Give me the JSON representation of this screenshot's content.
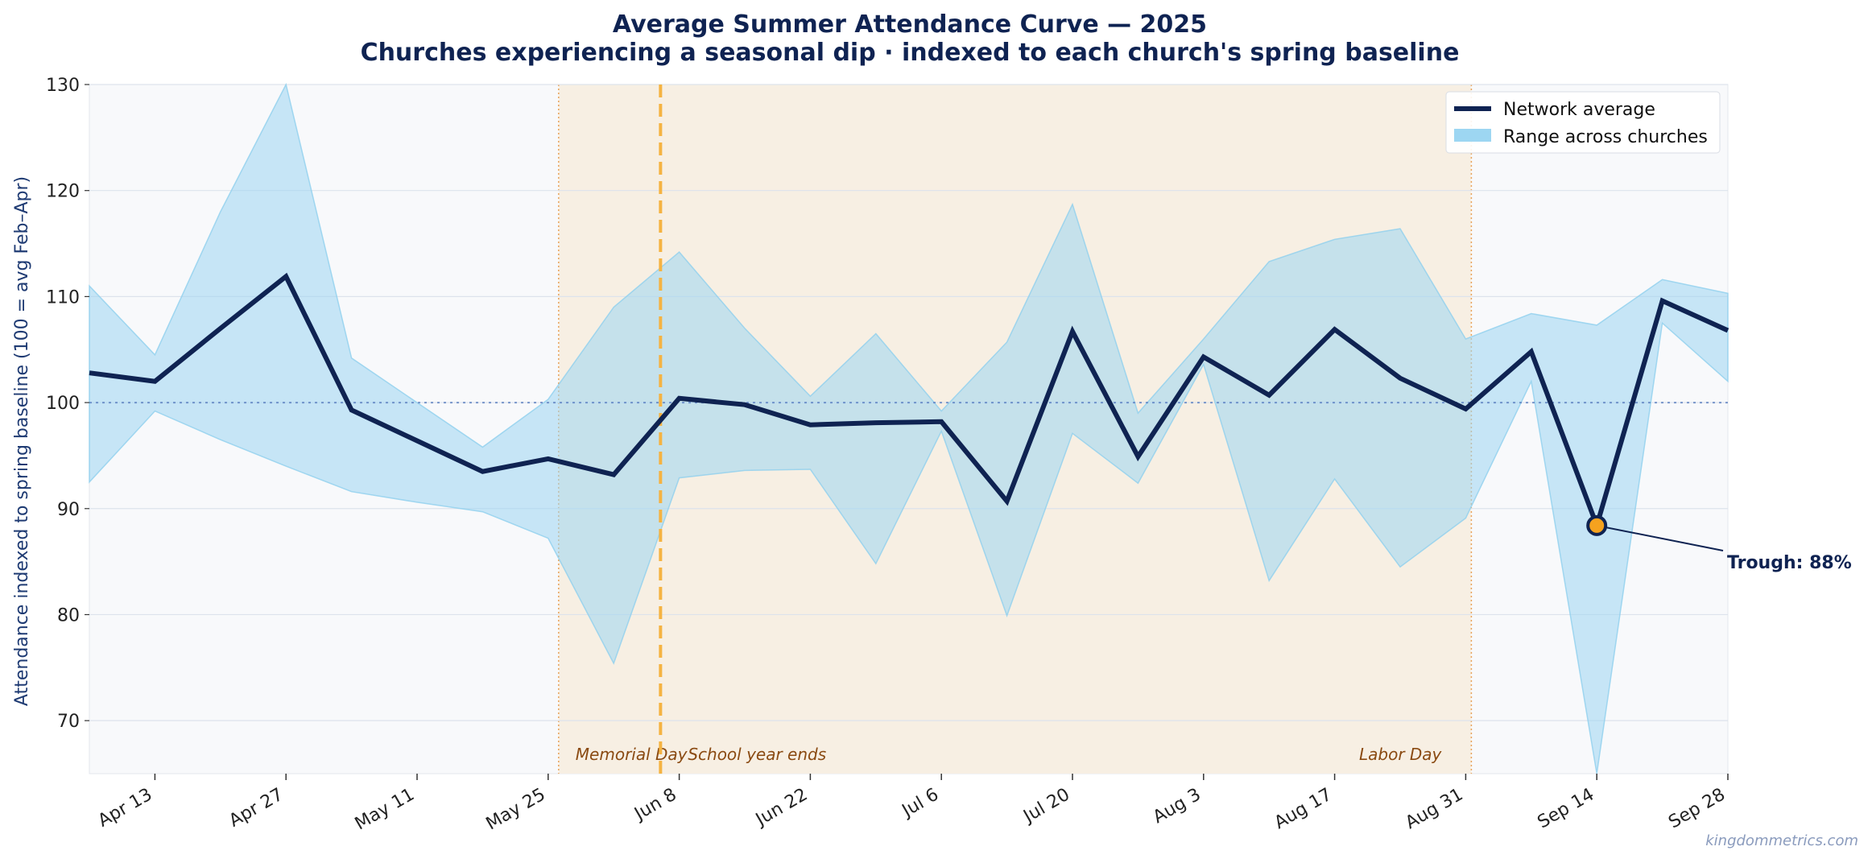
{
  "chart_data": {
    "type": "line",
    "title": "Average Summer Attendance Curve — 2025",
    "subtitle": "Churches experiencing a seasonal dip · indexed to each church's spring baseline",
    "ylabel": "Attendance indexed to spring baseline  (100 = avg Feb–Apr)",
    "xlabel": "",
    "x_tick_labels": [
      "Apr 13",
      "Apr 27",
      "May 11",
      "May 25",
      "Jun 8",
      "Jun 22",
      "Jul 6",
      "Jul 20",
      "Aug 3",
      "Aug 17",
      "Aug 31",
      "Sep 14",
      "Sep 28"
    ],
    "y_ticks": [
      70,
      80,
      90,
      100,
      110,
      120,
      130
    ],
    "ylim": [
      65,
      130
    ],
    "xlim": [
      "Apr 6",
      "Sep 28"
    ],
    "grid": "horizontal",
    "legend_position": "top-right",
    "x": [
      "Apr 6",
      "Apr 13",
      "Apr 20",
      "Apr 27",
      "May 4",
      "May 11",
      "May 18",
      "May 25",
      "Jun 1",
      "Jun 8",
      "Jun 15",
      "Jun 22",
      "Jun 29",
      "Jul 6",
      "Jul 13",
      "Jul 20",
      "Jul 27",
      "Aug 3",
      "Aug 10",
      "Aug 17",
      "Aug 24",
      "Aug 31",
      "Sep 7",
      "Sep 14",
      "Sep 21",
      "Sep 28"
    ],
    "series": [
      {
        "name": "Network average",
        "color": "#0f2352",
        "values": [
          102.8,
          102.0,
          107.0,
          111.9,
          99.3,
          96.4,
          93.5,
          94.7,
          93.2,
          100.4,
          99.8,
          97.9,
          98.1,
          98.2,
          90.7,
          106.7,
          94.9,
          104.3,
          100.7,
          106.9,
          102.3,
          99.4,
          104.8,
          88.4,
          109.6,
          106.8
        ]
      },
      {
        "name": "Range across churches",
        "color": "#9dd6f2",
        "type": "band",
        "upper": [
          111.0,
          104.5,
          118.0,
          132.0,
          104.2,
          100.0,
          95.8,
          100.3,
          109.0,
          114.2,
          107.0,
          100.6,
          106.5,
          99.2,
          105.7,
          118.7,
          99.0,
          106.0,
          113.3,
          115.4,
          116.4,
          106.0,
          108.4,
          107.3,
          111.6,
          110.3
        ],
        "lower": [
          92.5,
          99.2,
          96.5,
          94.0,
          91.6,
          90.6,
          89.7,
          87.2,
          75.4,
          92.9,
          93.6,
          93.7,
          84.8,
          97.3,
          79.9,
          97.1,
          92.4,
          103.6,
          83.2,
          92.8,
          84.5,
          89.1,
          102.0,
          60.0,
          107.5,
          102.0
        ]
      }
    ],
    "reference_line": {
      "y": 100,
      "color": "#5b7fc0"
    },
    "shaded_region": {
      "from": "May 25",
      "to": "Aug 31",
      "color": "#f7efe3",
      "border_color": "#e8a35a"
    },
    "annotations": [
      {
        "text": "Memorial Day",
        "x": "May 25"
      },
      {
        "text": "School year ends",
        "x": "Jun 6",
        "line_color": "#f5b342"
      },
      {
        "text": "Labor Day",
        "x": "Aug 31"
      }
    ],
    "trough": {
      "label": "Trough: 88%",
      "x": "Sep 14",
      "y": 88.4,
      "marker_color": "#f5a21f"
    },
    "credit": "kingdommetrics.com"
  }
}
